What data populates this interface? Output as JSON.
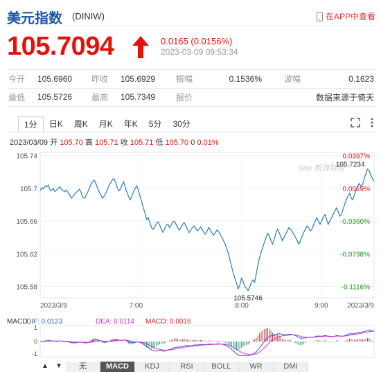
{
  "header": {
    "title": "美元指数",
    "code": "(DINIW)",
    "app_link": "在APP中查看"
  },
  "quote": {
    "price": "105.7094",
    "change": "0.0165 (0.0156%)",
    "time": "2023-03-09 09:53:34",
    "direction": "up",
    "color_up": "#e3120b"
  },
  "stats": {
    "row1": [
      {
        "label": "今开",
        "value": "105.6960"
      },
      {
        "label": "昨收",
        "value": "105.6929"
      },
      {
        "label": "振幅",
        "value": "0.1536%"
      },
      {
        "label": "波幅",
        "value": "0.1623"
      }
    ],
    "row2": [
      {
        "label": "最低",
        "value": "105.5726"
      },
      {
        "label": "最高",
        "value": "105.7349"
      },
      {
        "label": "报价",
        "value": ""
      },
      {
        "label": "",
        "value": "数据来源于倚天"
      }
    ]
  },
  "tabs": [
    "1分",
    "日K",
    "周K",
    "月K",
    "年K",
    "5分",
    "30分"
  ],
  "active_tab": "1分",
  "ohlc_line": {
    "date": "2023/03/09",
    "open_label": "开",
    "open": "105.70",
    "high_label": "高",
    "high": "105.71",
    "close_label": "收",
    "close": "105.71",
    "low_label": "低",
    "low": "105.70",
    "vol": "0",
    "pct": "0.01%"
  },
  "chart_data": {
    "type": "line",
    "y_ticks": [
      "105.74",
      "105.7",
      "105.66",
      "105.62",
      "105.58"
    ],
    "y_tick_values": [
      105.74,
      105.7,
      105.66,
      105.62,
      105.58
    ],
    "pct_ticks": [
      "0.0397%",
      "0.0019%",
      "-0.0360%",
      "-0.0738%",
      "-0.1116%"
    ],
    "x_ticks": [
      "2023/3/9",
      "7:00",
      "8:00",
      "9:00",
      "2023/3/9"
    ],
    "ylim": [
      105.566,
      105.744
    ],
    "annotations": {
      "max": "105.7234",
      "min": "105.5746"
    },
    "watermark": "sina 新浪财经",
    "line_color": "#2a7ab8",
    "values": [
      105.697,
      105.701,
      105.699,
      105.703,
      105.702,
      105.704,
      105.698,
      105.697,
      105.7,
      105.696,
      105.698,
      105.7,
      105.702,
      105.699,
      105.697,
      105.696,
      105.698,
      105.695,
      105.692,
      105.688,
      105.69,
      105.693,
      105.695,
      105.697,
      105.699,
      105.695,
      105.689,
      105.688,
      105.691,
      105.695,
      105.7,
      105.705,
      105.708,
      105.71,
      105.706,
      105.701,
      105.696,
      105.692,
      105.688,
      105.69,
      105.694,
      105.698,
      105.703,
      105.707,
      105.71,
      105.712,
      105.708,
      105.702,
      105.697,
      105.699,
      105.704,
      105.708,
      105.701,
      105.695,
      105.69,
      105.686,
      105.69,
      105.696,
      105.7,
      105.703,
      105.698,
      105.69,
      105.684,
      105.676,
      105.67,
      105.662,
      105.664,
      105.658,
      105.652,
      105.65,
      105.653,
      105.657,
      105.659,
      105.655,
      105.65,
      105.646,
      105.65,
      105.655,
      105.656,
      105.652,
      105.655,
      105.659,
      105.66,
      105.656,
      105.652,
      105.649,
      105.652,
      105.656,
      105.658,
      105.654,
      105.65,
      105.646,
      105.649,
      105.652,
      105.654,
      105.651,
      105.648,
      105.65,
      105.653,
      105.65,
      105.646,
      105.644,
      105.648,
      105.652,
      105.649,
      105.645,
      105.643,
      105.646,
      105.649,
      105.647,
      105.644,
      105.64,
      105.636,
      105.632,
      105.626,
      105.62,
      105.612,
      105.604,
      105.596,
      105.59,
      105.584,
      105.577,
      105.582,
      105.59,
      105.586,
      105.58,
      105.578,
      105.575,
      105.579,
      105.585,
      105.588,
      105.585,
      105.595,
      105.606,
      105.615,
      105.622,
      105.628,
      105.634,
      105.64,
      105.645,
      105.642,
      105.636,
      105.632,
      105.638,
      105.645,
      105.65,
      105.646,
      105.641,
      105.636,
      105.64,
      105.644,
      105.648,
      105.652,
      105.65,
      105.647,
      105.644,
      105.64,
      105.636,
      105.632,
      105.636,
      105.641,
      105.646,
      105.65,
      105.654,
      105.652,
      105.648,
      105.65,
      105.655,
      105.66,
      105.664,
      105.66,
      105.656,
      105.66,
      105.665,
      105.668,
      105.662,
      105.656,
      105.66,
      105.664,
      105.668,
      105.672,
      105.676,
      105.672,
      105.666,
      105.668,
      105.674,
      105.68,
      105.686,
      105.69,
      105.694,
      105.688,
      105.686,
      105.692,
      105.698,
      105.703,
      105.706,
      105.702,
      105.705,
      105.712,
      105.718,
      105.7234,
      105.722,
      105.716,
      105.712,
      105.709
    ]
  },
  "macd": {
    "label": "MACD",
    "dif_label": "DIF: 0.0123",
    "dea_label": "DEA: 0.0114",
    "macd_label": "MACD: 0.0016",
    "y_ticks": [
      "1",
      "0",
      "-1"
    ],
    "dif_color": "#3355cc",
    "dea_color": "#cc33cc",
    "macd_color": "#d23"
  },
  "indicators": [
    "无",
    "MACD",
    "KDJ",
    "RSI",
    "BOLL",
    "WR",
    "DMI"
  ],
  "active_indicator": "MACD",
  "scroll_buttons": [
    "▲",
    "▼"
  ]
}
